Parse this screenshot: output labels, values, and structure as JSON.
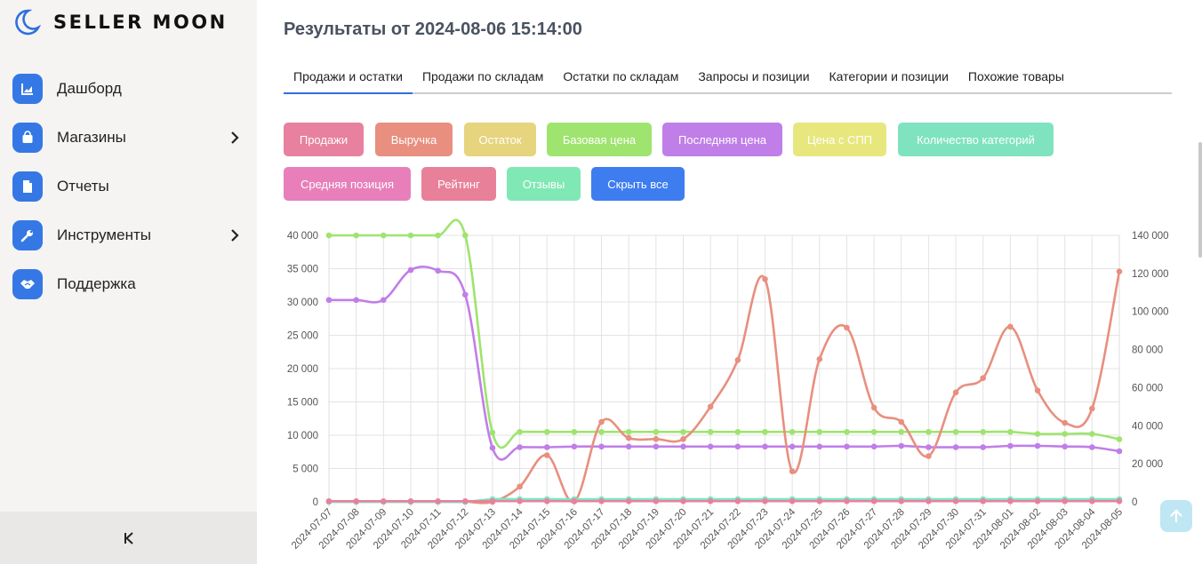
{
  "app": {
    "brand": "SELLER MOON"
  },
  "sidebar": {
    "items": [
      {
        "label": "Дашборд",
        "icon": "chart-icon",
        "has_submenu": false
      },
      {
        "label": "Магазины",
        "icon": "bag-icon",
        "has_submenu": true
      },
      {
        "label": "Отчеты",
        "icon": "document-icon",
        "has_submenu": false
      },
      {
        "label": "Инструменты",
        "icon": "wrench-icon",
        "has_submenu": true
      },
      {
        "label": "Поддержка",
        "icon": "handshake-icon",
        "has_submenu": false
      }
    ],
    "collapse_label": "K"
  },
  "main": {
    "title": "Результаты от 2024-08-06 15:14:00",
    "tabs": [
      {
        "label": "Продажи и остатки",
        "active": true
      },
      {
        "label": "Продажи по складам",
        "active": false
      },
      {
        "label": "Остатки по складам",
        "active": false
      },
      {
        "label": "Запросы и позиции",
        "active": false
      },
      {
        "label": "Категории и позиции",
        "active": false
      },
      {
        "label": "Похожие товары",
        "active": false
      }
    ],
    "filters": [
      {
        "label": "Продажи",
        "color": "#e8809f"
      },
      {
        "label": "Выручка",
        "color": "#e88f7f"
      },
      {
        "label": "Остаток",
        "color": "#e6d47e"
      },
      {
        "label": "Базовая цена",
        "color": "#9ee46f"
      },
      {
        "label": "Последняя цена",
        "color": "#c07ee8"
      },
      {
        "label": "Цена с СПП",
        "color": "#e8e77e"
      },
      {
        "label": "Количество категорий",
        "color": "#7fe3c0"
      },
      {
        "label": "Средняя позиция",
        "color": "#e87fba"
      },
      {
        "label": "Рейтинг",
        "color": "#e8809a"
      },
      {
        "label": "Отзывы",
        "color": "#80e8b4"
      },
      {
        "label": "Скрыть все",
        "color": "#3d7df0"
      }
    ]
  },
  "chart_data": {
    "type": "line",
    "x": [
      "2024-07-07",
      "2024-07-08",
      "2024-07-09",
      "2024-07-10",
      "2024-07-11",
      "2024-07-12",
      "2024-07-13",
      "2024-07-14",
      "2024-07-15",
      "2024-07-16",
      "2024-07-17",
      "2024-07-18",
      "2024-07-19",
      "2024-07-20",
      "2024-07-21",
      "2024-07-22",
      "2024-07-23",
      "2024-07-24",
      "2024-07-25",
      "2024-07-26",
      "2024-07-27",
      "2024-07-28",
      "2024-07-29",
      "2024-07-30",
      "2024-07-31",
      "2024-08-01",
      "2024-08-02",
      "2024-08-03",
      "2024-08-04",
      "2024-08-05"
    ],
    "y_left": {
      "min": 0,
      "max": 40000,
      "ticks": [
        "0",
        "5 000",
        "10 000",
        "15 000",
        "20 000",
        "25 000",
        "30 000",
        "35 000",
        "40 000"
      ]
    },
    "y_right": {
      "min": 0,
      "max": 140000,
      "ticks": [
        "0",
        "20 000",
        "40 000",
        "60 000",
        "80 000",
        "100 000",
        "120 000",
        "140 000"
      ]
    },
    "grid": true,
    "series": [
      {
        "axis": "left",
        "color": "#9ee46f",
        "values": [
          40000,
          40000,
          40000,
          40000,
          40000,
          40000,
          10400,
          10500,
          10500,
          10500,
          10500,
          10500,
          10500,
          10500,
          10500,
          10500,
          10500,
          10500,
          10500,
          10500,
          10500,
          10500,
          10500,
          10500,
          10500,
          10500,
          10200,
          10200,
          10200,
          9400
        ]
      },
      {
        "axis": "left",
        "color": "#c07ee8",
        "values": [
          30300,
          30300,
          30300,
          34800,
          34700,
          31100,
          8100,
          8200,
          8200,
          8300,
          8300,
          8300,
          8300,
          8300,
          8300,
          8300,
          8300,
          8300,
          8300,
          8300,
          8300,
          8400,
          8200,
          8200,
          8200,
          8400,
          8400,
          8300,
          8200,
          7600
        ]
      },
      {
        "axis": "right",
        "color": "#e88f7f",
        "values": [
          0,
          0,
          0,
          0,
          0,
          0,
          0,
          8000,
          24500,
          200,
          42000,
          33500,
          33000,
          33000,
          50000,
          74500,
          117000,
          16000,
          75000,
          91500,
          49500,
          42000,
          24000,
          57500,
          65000,
          92000,
          58500,
          41500,
          49000,
          121000
        ]
      },
      {
        "axis": "left",
        "color": "#7fe3c0",
        "values": [
          0,
          0,
          0,
          0,
          0,
          0,
          400,
          400,
          400,
          400,
          400,
          400,
          400,
          400,
          400,
          400,
          400,
          400,
          400,
          400,
          400,
          400,
          400,
          400,
          400,
          400,
          400,
          400,
          400,
          400
        ]
      },
      {
        "axis": "left",
        "color": "#e8809f",
        "values": [
          100,
          100,
          100,
          100,
          100,
          100,
          100,
          100,
          100,
          100,
          100,
          100,
          100,
          100,
          100,
          100,
          100,
          100,
          100,
          100,
          100,
          100,
          100,
          100,
          100,
          100,
          100,
          100,
          100,
          100
        ]
      }
    ]
  }
}
